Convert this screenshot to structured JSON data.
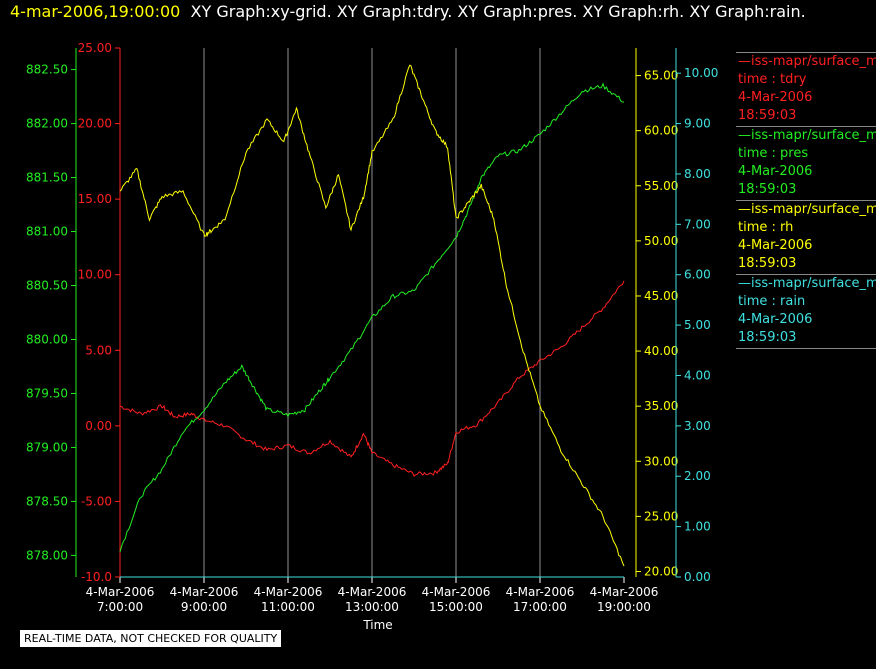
{
  "header": {
    "timestamp": "4-mar-2006,19:00:00",
    "graphs": "XY Graph:xy-grid.  XY Graph:tdry.  XY Graph:pres.  XY Graph:rh.  XY Graph:rain."
  },
  "legend": [
    {
      "name": "—iss-mapr/surface_m",
      "field": "time : tdry",
      "date": "4-Mar-2006",
      "time": "18:59:03",
      "color": "#ff2020"
    },
    {
      "name": "—iss-mapr/surface_m",
      "field": "time : pres",
      "date": "4-Mar-2006",
      "time": "18:59:03",
      "color": "#22ee22"
    },
    {
      "name": "—iss-mapr/surface_m",
      "field": "time : rh",
      "date": "4-Mar-2006",
      "time": "18:59:03",
      "color": "#ffff00"
    },
    {
      "name": "—iss-mapr/surface_m",
      "field": "time : rain",
      "date": "4-Mar-2006",
      "time": "18:59:03",
      "color": "#40e0e0"
    }
  ],
  "disclaimer": "REAL-TIME DATA, NOT CHECKED FOR QUALITY",
  "chart_data": {
    "type": "line",
    "xlabel": "Time",
    "x_ticks": [
      {
        "date": "4-Mar-2006",
        "time": "7:00:00",
        "h": 7
      },
      {
        "date": "4-Mar-2006",
        "time": "9:00:00",
        "h": 9
      },
      {
        "date": "4-Mar-2006",
        "time": "11:00:00",
        "h": 11
      },
      {
        "date": "4-Mar-2006",
        "time": "13:00:00",
        "h": 13
      },
      {
        "date": "4-Mar-2006",
        "time": "15:00:00",
        "h": 15
      },
      {
        "date": "4-Mar-2006",
        "time": "17:00:00",
        "h": 17
      },
      {
        "date": "4-Mar-2006",
        "time": "19:00:00",
        "h": 19
      }
    ],
    "xlim_hours": [
      7,
      19
    ],
    "grid": "vertical",
    "axes": [
      {
        "id": "pres",
        "color": "#22ee22",
        "ylim": [
          877.8,
          882.7
        ],
        "ticks": [
          "878.00",
          "878.50",
          "879.00",
          "879.50",
          "880.00",
          "880.50",
          "881.00",
          "881.50",
          "882.00",
          "882.50"
        ]
      },
      {
        "id": "tdry",
        "color": "#ff2020",
        "ylim": [
          -10,
          25
        ],
        "ticks": [
          "-10.0",
          "-5.00",
          "0.00",
          "5.00",
          "10.00",
          "15.00",
          "20.00",
          "25.00"
        ]
      },
      {
        "id": "rh",
        "color": "#ffff00",
        "ylim": [
          19.5,
          67.5
        ],
        "ticks": [
          "20.00",
          "25.00",
          "30.00",
          "35.00",
          "40.00",
          "45.00",
          "50.00",
          "55.00",
          "60.00",
          "65.00"
        ]
      },
      {
        "id": "rain",
        "color": "#40e0e0",
        "ylim": [
          0,
          10.5
        ],
        "ticks": [
          "0.00",
          "1.00",
          "2.00",
          "3.00",
          "4.00",
          "5.00",
          "6.00",
          "7.00",
          "8.00",
          "9.00",
          "10.00"
        ]
      }
    ],
    "series": [
      {
        "axis": "tdry",
        "color": "#ff2020",
        "x": [
          7.0,
          7.5,
          8.0,
          8.3,
          8.7,
          9.0,
          9.5,
          10.0,
          10.5,
          11.0,
          11.5,
          12.0,
          12.5,
          12.8,
          13.0,
          13.5,
          14.0,
          14.5,
          14.8,
          15.0,
          15.5,
          16.0,
          16.5,
          17.0,
          17.5,
          18.0,
          18.5,
          19.0
        ],
        "y": [
          1.3,
          0.8,
          1.3,
          0.6,
          0.8,
          0.4,
          0.0,
          -0.9,
          -1.6,
          -1.3,
          -1.8,
          -1.0,
          -2.1,
          -0.5,
          -1.8,
          -2.6,
          -3.2,
          -3.1,
          -2.5,
          -0.4,
          0.1,
          1.5,
          3.2,
          4.3,
          5.2,
          6.5,
          7.8,
          9.6
        ]
      },
      {
        "axis": "pres",
        "color": "#22ee22",
        "x": [
          7.0,
          7.5,
          8.0,
          8.5,
          9.0,
          9.5,
          9.9,
          10.2,
          10.5,
          11.0,
          11.4,
          11.8,
          12.0,
          12.5,
          13.0,
          13.5,
          14.0,
          14.5,
          15.0,
          15.3,
          15.6,
          16.0,
          16.5,
          17.0,
          17.5,
          18.0,
          18.5,
          19.0
        ],
        "y": [
          878.05,
          878.55,
          878.8,
          879.15,
          879.35,
          879.6,
          879.75,
          879.55,
          879.35,
          879.3,
          879.35,
          879.55,
          879.65,
          879.9,
          880.2,
          880.4,
          880.45,
          880.7,
          880.95,
          881.2,
          881.5,
          881.7,
          881.75,
          881.9,
          882.1,
          882.3,
          882.35,
          882.2
        ]
      },
      {
        "axis": "rh",
        "color": "#ffff00",
        "x": [
          7.0,
          7.4,
          7.7,
          8.0,
          8.5,
          9.0,
          9.2,
          9.5,
          10.0,
          10.5,
          10.9,
          11.2,
          11.5,
          11.9,
          12.2,
          12.5,
          12.8,
          13.0,
          13.5,
          13.9,
          14.2,
          14.5,
          14.8,
          15.0,
          15.3,
          15.6,
          15.9,
          16.2,
          16.6,
          17.0,
          17.5,
          18.0,
          18.5,
          19.0
        ],
        "y": [
          54.5,
          56.5,
          52.0,
          54.0,
          54.5,
          50.5,
          51.0,
          52.0,
          58.0,
          61.0,
          59.0,
          62.0,
          58.0,
          53.0,
          56.0,
          51.0,
          54.0,
          58.0,
          61.0,
          66.0,
          63.0,
          60.0,
          58.5,
          52.0,
          53.5,
          55.0,
          52.0,
          46.0,
          40.0,
          35.0,
          31.0,
          28.0,
          25.0,
          20.5
        ]
      },
      {
        "axis": "rain",
        "color": "#40e0e0",
        "x": [
          7.0,
          19.0
        ],
        "y": [
          0.0,
          0.0
        ]
      }
    ]
  }
}
